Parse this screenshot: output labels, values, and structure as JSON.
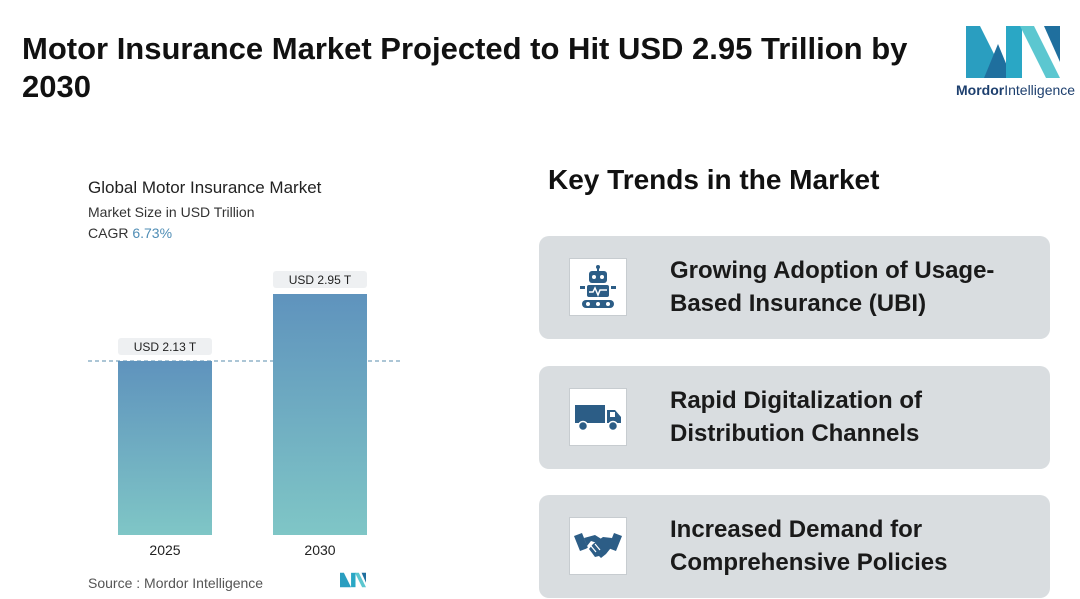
{
  "header": {
    "title": "Motor Insurance Market Projected to Hit USD 2.95 Trillion by 2030",
    "logo_brand": "Mordor",
    "logo_suffix": "Intelligence"
  },
  "chart_data": {
    "type": "bar",
    "title": "Global Motor Insurance Market",
    "subtitle": "Market Size in USD Trillion",
    "cagr_label": "CAGR",
    "cagr_value": "6.73%",
    "categories": [
      "2025",
      "2030"
    ],
    "values": [
      2.13,
      2.95
    ],
    "data_labels": [
      "USD 2.13 T",
      "USD 2.95 T"
    ],
    "ylim": [
      0,
      2.95
    ],
    "reference_line_at": 2.13,
    "grid": false,
    "colors": {
      "bar_top": "#5f93bd",
      "bar_bottom": "#7fc6c6",
      "dash": "#7aa4bd"
    }
  },
  "source": {
    "label": "Source :",
    "value": "Mordor Intelligence"
  },
  "trends": {
    "title": "Key Trends in the Market",
    "items": [
      {
        "text": "Growing Adoption of Usage-Based Insurance (UBI)",
        "icon": "robot-icon"
      },
      {
        "text": "Rapid Digitalization of Distribution Channels",
        "icon": "truck-icon"
      },
      {
        "text": "Increased Demand for Comprehensive Policies",
        "icon": "handshake-icon"
      }
    ]
  }
}
